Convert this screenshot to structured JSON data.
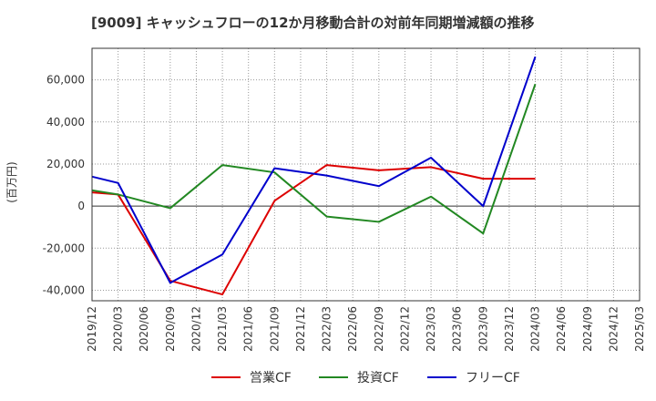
{
  "chart_data": {
    "type": "line",
    "title": "[9009]  キャッシュフローの12か月移動合計の対前年同期増減額の推移",
    "ylabel": "(百万円)",
    "xlabel": "",
    "ylim": [
      -45000,
      75000
    ],
    "yticks": [
      -40000,
      -20000,
      0,
      20000,
      40000,
      60000
    ],
    "ytick_labels": [
      "-40,000",
      "-20,000",
      "0",
      "20,000",
      "40,000",
      "60,000"
    ],
    "xticks": [
      "2019/12",
      "2020/03",
      "2020/06",
      "2020/09",
      "2020/12",
      "2021/03",
      "2021/06",
      "2021/09",
      "2021/12",
      "2022/03",
      "2022/06",
      "2022/09",
      "2022/12",
      "2023/03",
      "2023/06",
      "2023/09",
      "2023/12",
      "2024/03",
      "2024/06",
      "2024/09",
      "2024/12",
      "2025/03"
    ],
    "x": [
      "2019/12",
      "2020/03",
      "2020/09",
      "2021/03",
      "2021/09",
      "2022/03",
      "2022/09",
      "2023/03",
      "2023/09",
      "2024/03"
    ],
    "grid": true,
    "legend_position": "bottom",
    "series": [
      {
        "name": "営業CF",
        "color": "#dd0000",
        "values": [
          6500,
          5500,
          -35500,
          -42000,
          2500,
          19500,
          17000,
          18500,
          13000,
          13000
        ]
      },
      {
        "name": "投資CF",
        "color": "#228822",
        "values": [
          7500,
          5500,
          -1000,
          19500,
          16000,
          -5000,
          -7500,
          4500,
          -13000,
          58000
        ]
      },
      {
        "name": "フリーCF",
        "color": "#0000cc",
        "values": [
          14000,
          11000,
          -36500,
          -23000,
          18000,
          14500,
          9500,
          23000,
          0,
          71000
        ]
      }
    ]
  }
}
